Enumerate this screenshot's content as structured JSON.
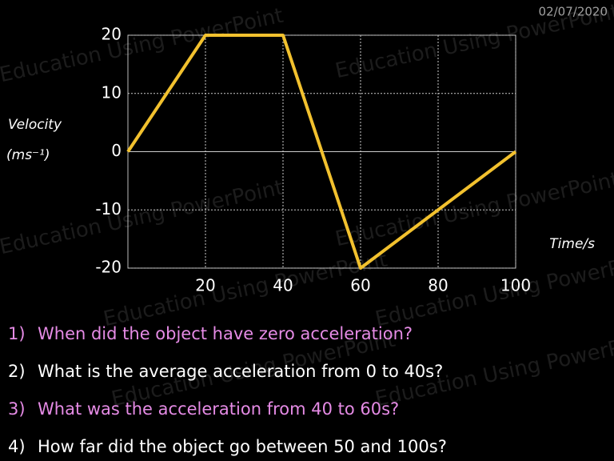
{
  "date": "02/07/2020",
  "watermark": "Education Using PowerPoint",
  "chart_data": {
    "type": "line",
    "y_label": "Velocity",
    "y_unit": "(ms⁻¹)",
    "x_label": "Time/s",
    "x": [
      0,
      20,
      40,
      60,
      100
    ],
    "series": [
      {
        "name": "velocity",
        "color": "#f2c12e",
        "values": [
          0,
          20,
          20,
          -20,
          0
        ]
      }
    ],
    "xlim": [
      0,
      100
    ],
    "ylim": [
      -20,
      20
    ],
    "xticks": [
      20,
      40,
      60,
      80,
      100
    ],
    "yticks": [
      -20,
      -10,
      0,
      10,
      20
    ],
    "grid": true
  },
  "questions": [
    {
      "number": "1)",
      "text": "When did the object have zero acceleration?",
      "color": "#e58be5"
    },
    {
      "number": "2)",
      "text": "What is the average acceleration from 0 to 40s?",
      "color": "#ffffff"
    },
    {
      "number": "3)",
      "text": "What was the acceleration from 40 to 60s?",
      "color": "#e58be5"
    },
    {
      "number": "4)",
      "text": "How far did the object go between 50 and 100s?",
      "color": "#ffffff"
    }
  ]
}
